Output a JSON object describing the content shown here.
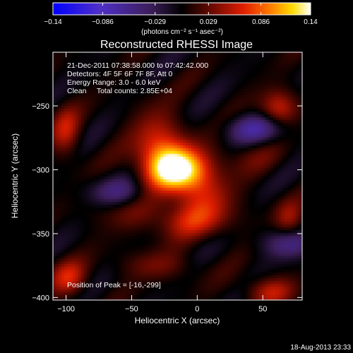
{
  "chart_data": {
    "type": "heatmap",
    "title": "Reconstructed RHESSI Image",
    "xlabel": "Heliocentric X (arcsec)",
    "ylabel": "Heliocentric Y (arcsec)",
    "xlim": [
      -110,
      80
    ],
    "ylim": [
      -402,
      -208
    ],
    "x_ticks": [
      -100,
      -50,
      0,
      50
    ],
    "x_tick_labels": [
      "−100",
      "−50",
      "0",
      "50"
    ],
    "y_ticks": [
      -250,
      -300,
      -350,
      -400
    ],
    "y_tick_labels": [
      "−250",
      "−300",
      "−350",
      "−400"
    ],
    "colorbar": {
      "min": -0.14,
      "max": 0.14,
      "ticks": [
        -0.14,
        -0.086,
        -0.029,
        0.029,
        0.086,
        0.14
      ],
      "tick_labels": [
        "−0.14",
        "−0.086",
        "−0.029",
        "0.029",
        "0.086",
        "0.14"
      ],
      "unit_label": "(photons cm⁻² s⁻¹ asec⁻²)"
    },
    "annotations": [
      "21-Dec-2011 07:38:58.000 to 07:42:42.000",
      "Detectors: 4F 5F 6F 7F 8F, Att 0",
      "Energy Range: 3.0 - 6.0 keV",
      "Clean     Total counts: 2.85E+04"
    ],
    "peak_label": "Position of Peak = [-16,-299]",
    "peak": {
      "x": -16,
      "y": -299,
      "value": 0.14
    },
    "sources": [
      {
        "x": -16,
        "y": -299,
        "amplitude": 0.15,
        "sx": 16,
        "sy": 12,
        "note": "main peak"
      },
      {
        "x": -30,
        "y": -278,
        "amplitude": 0.055,
        "sx": 14,
        "sy": 18
      },
      {
        "x": 5,
        "y": -322,
        "amplitude": 0.05,
        "sx": 16,
        "sy": 14
      },
      {
        "x": -8,
        "y": -340,
        "amplitude": 0.045,
        "sx": 22,
        "sy": 10
      },
      {
        "x": -30,
        "y": -375,
        "amplitude": 0.03,
        "sx": 20,
        "sy": 8
      },
      {
        "x": 62,
        "y": -252,
        "amplitude": 0.06,
        "sx": 10,
        "sy": 10
      },
      {
        "x": 70,
        "y": -338,
        "amplitude": 0.04,
        "sx": 8,
        "sy": 10
      },
      {
        "x": 55,
        "y": -395,
        "amplitude": 0.05,
        "sx": 14,
        "sy": 8
      },
      {
        "x": -100,
        "y": -270,
        "amplitude": 0.05,
        "sx": 8,
        "sy": 14
      },
      {
        "x": -98,
        "y": -385,
        "amplitude": 0.055,
        "sx": 10,
        "sy": 10
      },
      {
        "x": -55,
        "y": -330,
        "amplitude": 0.02,
        "sx": 20,
        "sy": 12
      },
      {
        "x": 40,
        "y": -290,
        "amplitude": 0.02,
        "sx": 18,
        "sy": 10
      },
      {
        "x": 45,
        "y": -268,
        "amplitude": -0.06,
        "sx": 16,
        "sy": 8,
        "note": "negative lobe"
      },
      {
        "x": -60,
        "y": -318,
        "amplitude": -0.05,
        "sx": 16,
        "sy": 8,
        "note": "negative lobe"
      },
      {
        "x": 70,
        "y": -358,
        "amplitude": -0.05,
        "sx": 14,
        "sy": 8,
        "note": "negative lobe"
      }
    ],
    "fringe": {
      "amplitude": 0.018,
      "period_arcsec": 42,
      "orientation": "diagonal, from lower-left to upper-right"
    },
    "background_level": 0.0,
    "colormap": "RHESSI blue-purple-black-red-yellow-white"
  },
  "footer": {
    "timestamp": "18-Aug-2013 23:33"
  },
  "colors": {
    "background": "#000000",
    "text": "#ffffff"
  }
}
